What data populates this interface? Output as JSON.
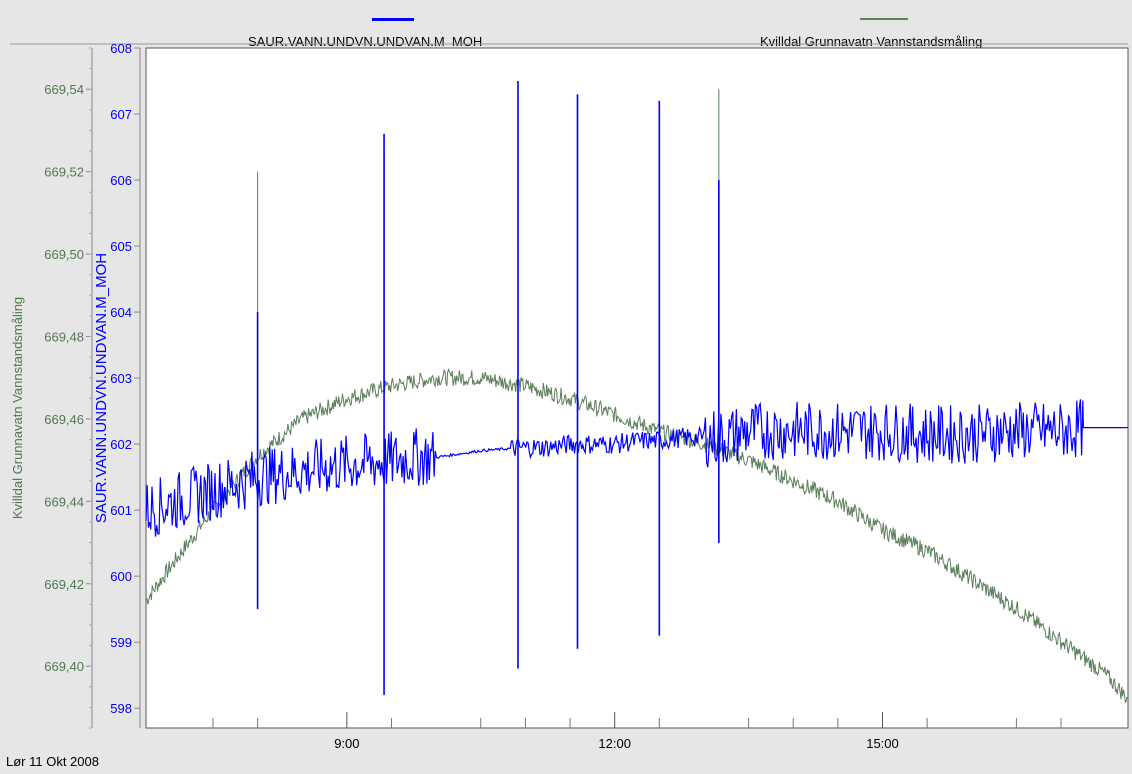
{
  "chart_data": {
    "type": "line",
    "date": "Lør 11 Okt 2008",
    "x_axis": {
      "type": "time",
      "range": [
        "06:45",
        "17:45"
      ],
      "major_tick_labels": [
        "9:00",
        "12:00",
        "15:00"
      ],
      "major_ticks": [
        "09:00",
        "12:00",
        "15:00"
      ],
      "minor_ticks": [
        "07:30",
        "08:00",
        "09:30",
        "10:30",
        "11:00",
        "11:30",
        "12:30",
        "13:30",
        "14:00",
        "14:30",
        "15:30",
        "16:30",
        "17:00"
      ]
    },
    "y_axis_left_outer": {
      "label": "Kvilldal  Grunnavatn Vannstandsmåling",
      "color": "#4e7a4e",
      "range": [
        669.385,
        669.55
      ],
      "ticks": [
        669.4,
        669.42,
        669.44,
        669.46,
        669.48,
        669.5,
        669.52,
        669.54
      ],
      "tick_labels": [
        "669,40",
        "669,42",
        "669,44",
        "669,46",
        "669,48",
        "669,50",
        "669,52",
        "669,54"
      ]
    },
    "y_axis_left_inner": {
      "label": "SAUR.VANN.UNDVN.UNDVAN.M_MOH",
      "color": "#0000ff",
      "range": [
        597.7,
        608.0
      ],
      "ticks": [
        598,
        599,
        600,
        601,
        602,
        603,
        604,
        605,
        606,
        607,
        608
      ],
      "tick_labels": [
        "598",
        "599",
        "600",
        "601",
        "602",
        "603",
        "604",
        "605",
        "606",
        "607",
        "608"
      ]
    },
    "series": [
      {
        "name": "SAUR.VANN.UNDVN.UNDVAN.M_MOH",
        "color": "#0000ff",
        "axis": "inner",
        "x": [
          "06:45",
          "07:00",
          "07:15",
          "07:30",
          "07:45",
          "08:00",
          "08:15",
          "08:30",
          "08:45",
          "09:00",
          "09:15",
          "09:30",
          "09:45",
          "10:00",
          "10:30",
          "11:00",
          "11:15",
          "11:30",
          "11:45",
          "12:00",
          "12:15",
          "12:30",
          "12:45",
          "13:00",
          "13:15",
          "13:30",
          "13:45",
          "14:00",
          "14:30",
          "15:00",
          "15:30",
          "16:00",
          "16:30",
          "17:00",
          "17:15",
          "17:45"
        ],
        "values": [
          601.0,
          601.1,
          601.2,
          601.3,
          601.4,
          601.5,
          601.55,
          601.6,
          601.65,
          601.7,
          601.72,
          601.75,
          601.8,
          601.8,
          601.9,
          601.95,
          601.95,
          602.0,
          602.0,
          602.0,
          602.05,
          602.05,
          602.1,
          602.1,
          602.1,
          602.2,
          602.2,
          602.2,
          602.2,
          602.2,
          602.15,
          602.15,
          602.2,
          602.2,
          602.25,
          602.25
        ],
        "noise_band": 0.45,
        "spikes": [
          {
            "x": "08:00",
            "high": 604.0,
            "low": 599.5
          },
          {
            "x": "09:25",
            "high": 606.7,
            "low": 598.2
          },
          {
            "x": "10:55",
            "high": 607.5,
            "low": 598.6
          },
          {
            "x": "11:35",
            "high": 607.3,
            "low": 598.9
          },
          {
            "x": "12:30",
            "high": 607.2,
            "low": 599.1
          },
          {
            "x": "13:10",
            "high": 606.0,
            "low": 600.5
          }
        ]
      },
      {
        "name": "Kvilldal  Grunnavatn Vannstandsmåling",
        "color": "#5c7f5c",
        "axis": "outer",
        "x": [
          "06:45",
          "07:30",
          "08:00",
          "08:30",
          "09:00",
          "09:30",
          "10:00",
          "10:30",
          "11:00",
          "11:30",
          "12:00",
          "12:30",
          "13:00",
          "13:30",
          "14:00",
          "14:30",
          "15:00",
          "15:30",
          "16:00",
          "16:30",
          "17:00",
          "17:30",
          "17:45"
        ],
        "values": [
          669.416,
          669.438,
          669.451,
          669.46,
          669.465,
          669.468,
          669.47,
          669.47,
          669.468,
          669.465,
          669.461,
          669.457,
          669.454,
          669.45,
          669.445,
          669.44,
          669.433,
          669.428,
          669.421,
          669.414,
          669.406,
          669.398,
          669.392
        ],
        "noise_band": 0.002,
        "spikes": [
          {
            "x": "08:00",
            "high": 669.52
          },
          {
            "x": "09:25",
            "high": 669.525
          },
          {
            "x": "10:55",
            "high": 669.5
          },
          {
            "x": "11:35",
            "high": 669.485
          },
          {
            "x": "12:30",
            "high": 669.495
          },
          {
            "x": "13:10",
            "high": 669.54
          }
        ]
      }
    ],
    "grid": false
  },
  "legend": {
    "blue_label": "SAUR.VANN.UNDVN.UNDVAN.M_MOH",
    "green_label": "Kvilldal  Grunnavatn Vannstandsmåling"
  }
}
